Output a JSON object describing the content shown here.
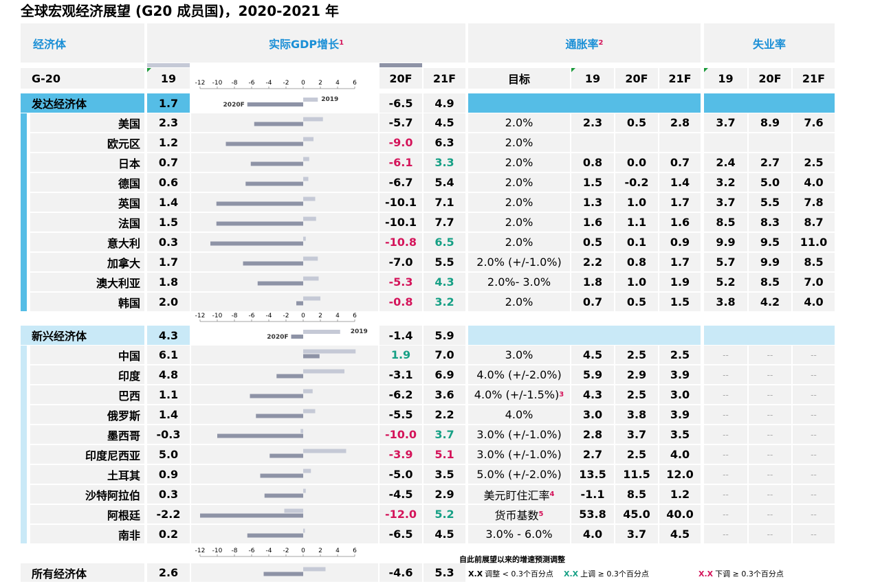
{
  "title": "全球宏观经济展望 (G20 成员国)，2020-2021 年",
  "headers": {
    "economy": "经济体",
    "gdp": "实际GDP增长",
    "gdp_sup": "1",
    "inflation": "通胀率",
    "inflation_sup": "2",
    "unemployment": "失业率",
    "g20": "G-20",
    "y19": "19",
    "y20f": "20F",
    "y21f": "21F",
    "target": "目标"
  },
  "axis_ticks": [
    "-12",
    "-10",
    "-8",
    "-6",
    "-4",
    "-2",
    "0",
    "2",
    "4",
    "6"
  ],
  "bar_labels": {
    "f2020": "2020F",
    "y2019": "2019"
  },
  "colors": {
    "bar2019": "#c5c9d6",
    "bar2020": "#8e93a6",
    "accent_blue": "#55bde6",
    "light_blue": "#c9e9f7",
    "red": "#d4145a",
    "green": "#16a085"
  },
  "legend": {
    "title": "自此前展望以来的增速预测调整",
    "neutral_sample": "X.X",
    "neutral_text": "调整 < 0.3个百分点",
    "up_sample": "X.X",
    "up_text": "上调 ≥ 0.3个百分点",
    "down_sample": "X.X",
    "down_text": "下调 ≥ 0.3个百分点"
  },
  "chart_data": {
    "type": "table",
    "title": "全球宏观经济展望 (G20 成员国)，2020-2021 年",
    "gdp_axis_range": [
      -12,
      6
    ],
    "groups": [
      {
        "name": "发达经济体",
        "summary": {
          "g19": "1.7",
          "g20f": "-6.5",
          "g21f": "4.9",
          "g20f_c": "",
          "g21f_c": ""
        },
        "rows": [
          {
            "name": "美国",
            "g19": "2.3",
            "g20f": "-5.7",
            "g21f": "4.5",
            "g20f_c": "",
            "g21f_c": "",
            "target": "2.0%",
            "target_sup": "",
            "i19": "2.3",
            "i20f": "0.5",
            "i21f": "2.8",
            "u19": "3.7",
            "u20f": "8.9",
            "u21f": "7.6"
          },
          {
            "name": "欧元区",
            "g19": "1.2",
            "g20f": "-9.0",
            "g21f": "6.3",
            "g20f_c": "red",
            "g21f_c": "",
            "target": "2.0%",
            "target_sup": "",
            "i19": "",
            "i20f": "",
            "i21f": "",
            "u19": "",
            "u20f": "",
            "u21f": ""
          },
          {
            "name": "日本",
            "g19": "0.7",
            "g20f": "-6.1",
            "g21f": "3.3",
            "g20f_c": "red",
            "g21f_c": "green",
            "target": "2.0%",
            "target_sup": "",
            "i19": "0.8",
            "i20f": "0.0",
            "i21f": "0.7",
            "u19": "2.4",
            "u20f": "2.7",
            "u21f": "2.5"
          },
          {
            "name": "德国",
            "g19": "0.6",
            "g20f": "-6.7",
            "g21f": "5.4",
            "g20f_c": "",
            "g21f_c": "",
            "target": "2.0%",
            "target_sup": "",
            "i19": "1.5",
            "i20f": "-0.2",
            "i21f": "1.4",
            "u19": "3.2",
            "u20f": "5.0",
            "u21f": "4.0"
          },
          {
            "name": "英国",
            "g19": "1.4",
            "g20f": "-10.1",
            "g21f": "7.1",
            "g20f_c": "",
            "g21f_c": "",
            "target": "2.0%",
            "target_sup": "",
            "i19": "1.3",
            "i20f": "1.0",
            "i21f": "1.7",
            "u19": "3.7",
            "u20f": "5.5",
            "u21f": "7.8"
          },
          {
            "name": "法国",
            "g19": "1.5",
            "g20f": "-10.1",
            "g21f": "7.7",
            "g20f_c": "",
            "g21f_c": "",
            "target": "2.0%",
            "target_sup": "",
            "i19": "1.6",
            "i20f": "1.1",
            "i21f": "1.6",
            "u19": "8.5",
            "u20f": "8.3",
            "u21f": "8.7"
          },
          {
            "name": "意大利",
            "g19": "0.3",
            "g20f": "-10.8",
            "g21f": "6.5",
            "g20f_c": "red",
            "g21f_c": "green",
            "target": "2.0%",
            "target_sup": "",
            "i19": "0.5",
            "i20f": "0.1",
            "i21f": "0.9",
            "u19": "9.9",
            "u20f": "9.5",
            "u21f": "11.0"
          },
          {
            "name": "加拿大",
            "g19": "1.7",
            "g20f": "-7.0",
            "g21f": "5.5",
            "g20f_c": "",
            "g21f_c": "",
            "target": "2.0% (+/-1.0%)",
            "target_sup": "",
            "i19": "2.2",
            "i20f": "0.8",
            "i21f": "1.7",
            "u19": "5.7",
            "u20f": "9.9",
            "u21f": "8.5"
          },
          {
            "name": "澳大利亚",
            "g19": "1.8",
            "g20f": "-5.3",
            "g21f": "4.3",
            "g20f_c": "red",
            "g21f_c": "green",
            "target": "2.0%- 3.0%",
            "target_sup": "",
            "i19": "1.8",
            "i20f": "1.0",
            "i21f": "1.9",
            "u19": "5.2",
            "u20f": "8.5",
            "u21f": "7.0"
          },
          {
            "name": "韩国",
            "g19": "2.0",
            "g20f": "-0.8",
            "g21f": "3.2",
            "g20f_c": "red",
            "g21f_c": "green",
            "target": "2.0%",
            "target_sup": "",
            "i19": "0.7",
            "i20f": "0.5",
            "i21f": "1.5",
            "u19": "3.8",
            "u20f": "4.2",
            "u21f": "4.0"
          }
        ]
      },
      {
        "name": "新兴经济体",
        "summary": {
          "g19": "4.3",
          "g20f": "-1.4",
          "g21f": "5.9",
          "g20f_c": "",
          "g21f_c": ""
        },
        "rows": [
          {
            "name": "中国",
            "g19": "6.1",
            "g20f": "1.9",
            "g21f": "7.0",
            "g20f_c": "green",
            "g21f_c": "",
            "target": "3.0%",
            "target_sup": "",
            "i19": "4.5",
            "i20f": "2.5",
            "i21f": "2.5",
            "u19": "--",
            "u20f": "--",
            "u21f": "--"
          },
          {
            "name": "印度",
            "g19": "4.8",
            "g20f": "-3.1",
            "g21f": "6.9",
            "g20f_c": "",
            "g21f_c": "",
            "target": "4.0% (+/-2.0%)",
            "target_sup": "",
            "i19": "5.9",
            "i20f": "2.9",
            "i21f": "3.9",
            "u19": "--",
            "u20f": "--",
            "u21f": "--"
          },
          {
            "name": "巴西",
            "g19": "1.1",
            "g20f": "-6.2",
            "g21f": "3.6",
            "g20f_c": "",
            "g21f_c": "",
            "target": "4.0% (+/-1.5%)",
            "target_sup": "3",
            "i19": "4.3",
            "i20f": "2.5",
            "i21f": "3.0",
            "u19": "--",
            "u20f": "--",
            "u21f": "--"
          },
          {
            "name": "俄罗斯",
            "g19": "1.4",
            "g20f": "-5.5",
            "g21f": "2.2",
            "g20f_c": "",
            "g21f_c": "",
            "target": "4.0%",
            "target_sup": "",
            "i19": "3.0",
            "i20f": "3.8",
            "i21f": "3.9",
            "u19": "--",
            "u20f": "--",
            "u21f": "--"
          },
          {
            "name": "墨西哥",
            "g19": "-0.3",
            "g20f": "-10.0",
            "g21f": "3.7",
            "g20f_c": "red",
            "g21f_c": "green",
            "target": "3.0% (+/-1.0%)",
            "target_sup": "",
            "i19": "2.8",
            "i20f": "3.7",
            "i21f": "3.5",
            "u19": "--",
            "u20f": "--",
            "u21f": "--"
          },
          {
            "name": "印度尼西亚",
            "g19": "5.0",
            "g20f": "-3.9",
            "g21f": "5.1",
            "g20f_c": "red",
            "g21f_c": "red",
            "target": "3.0% (+/-1.0%)",
            "target_sup": "",
            "i19": "2.7",
            "i20f": "2.5",
            "i21f": "4.0",
            "u19": "--",
            "u20f": "--",
            "u21f": "--"
          },
          {
            "name": "土耳其",
            "g19": "0.9",
            "g20f": "-5.0",
            "g21f": "3.5",
            "g20f_c": "",
            "g21f_c": "",
            "target": "5.0% (+/-2.0%)",
            "target_sup": "",
            "i19": "13.5",
            "i20f": "11.5",
            "i21f": "12.0",
            "u19": "--",
            "u20f": "--",
            "u21f": "--"
          },
          {
            "name": "沙特阿拉伯",
            "g19": "0.3",
            "g20f": "-4.5",
            "g21f": "2.9",
            "g20f_c": "",
            "g21f_c": "",
            "target": "美元盯住汇率",
            "target_sup": "4",
            "i19": "-1.1",
            "i20f": "8.5",
            "i21f": "1.2",
            "u19": "--",
            "u20f": "--",
            "u21f": "--"
          },
          {
            "name": "阿根廷",
            "g19": "-2.2",
            "g20f": "-12.0",
            "g21f": "5.2",
            "g20f_c": "red",
            "g21f_c": "green",
            "target": "货币基数",
            "target_sup": "5",
            "i19": "53.8",
            "i20f": "45.0",
            "i21f": "40.0",
            "u19": "--",
            "u20f": "--",
            "u21f": "--"
          },
          {
            "name": "南非",
            "g19": "0.2",
            "g20f": "-6.5",
            "g21f": "4.5",
            "g20f_c": "",
            "g21f_c": "",
            "target": "3.0% - 6.0%",
            "target_sup": "",
            "i19": "4.0",
            "i20f": "3.7",
            "i21f": "4.5",
            "u19": "--",
            "u20f": "--",
            "u21f": "--"
          }
        ]
      }
    ],
    "all": {
      "name": "所有经济体",
      "g19": "2.6",
      "g20f": "-4.6",
      "g21f": "5.3"
    }
  }
}
